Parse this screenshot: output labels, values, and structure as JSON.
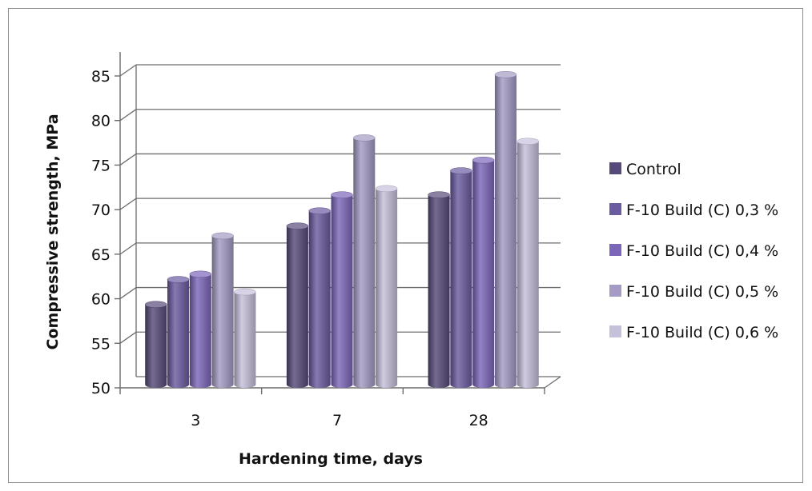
{
  "chart_data": {
    "type": "bar",
    "title": "",
    "xlabel": "Hardening time, days",
    "ylabel": "Compressive strength, MPa",
    "categories": [
      "3",
      "7",
      "28"
    ],
    "ylim": [
      50,
      85
    ],
    "yticks": [
      50,
      55,
      60,
      65,
      70,
      75,
      80,
      85
    ],
    "grid": true,
    "legend_position": "right",
    "series": [
      {
        "name": "Control",
        "values": [
          59.0,
          67.8,
          71.3
        ],
        "color": "#574a7a"
      },
      {
        "name": "F-10 Build (C) 0,3 %",
        "values": [
          61.8,
          69.5,
          74.0
        ],
        "color": "#6b5ba0"
      },
      {
        "name": "F-10 Build (C) 0,4 %",
        "values": [
          62.4,
          71.3,
          75.2
        ],
        "color": "#7c66ba"
      },
      {
        "name": "F-10 Build (C) 0,5 %",
        "values": [
          66.7,
          77.7,
          84.8
        ],
        "color": "#a59bc5"
      },
      {
        "name": "F-10 Build (C) 0,6 %",
        "values": [
          60.4,
          72.0,
          77.3
        ],
        "color": "#c7c0db"
      }
    ]
  }
}
